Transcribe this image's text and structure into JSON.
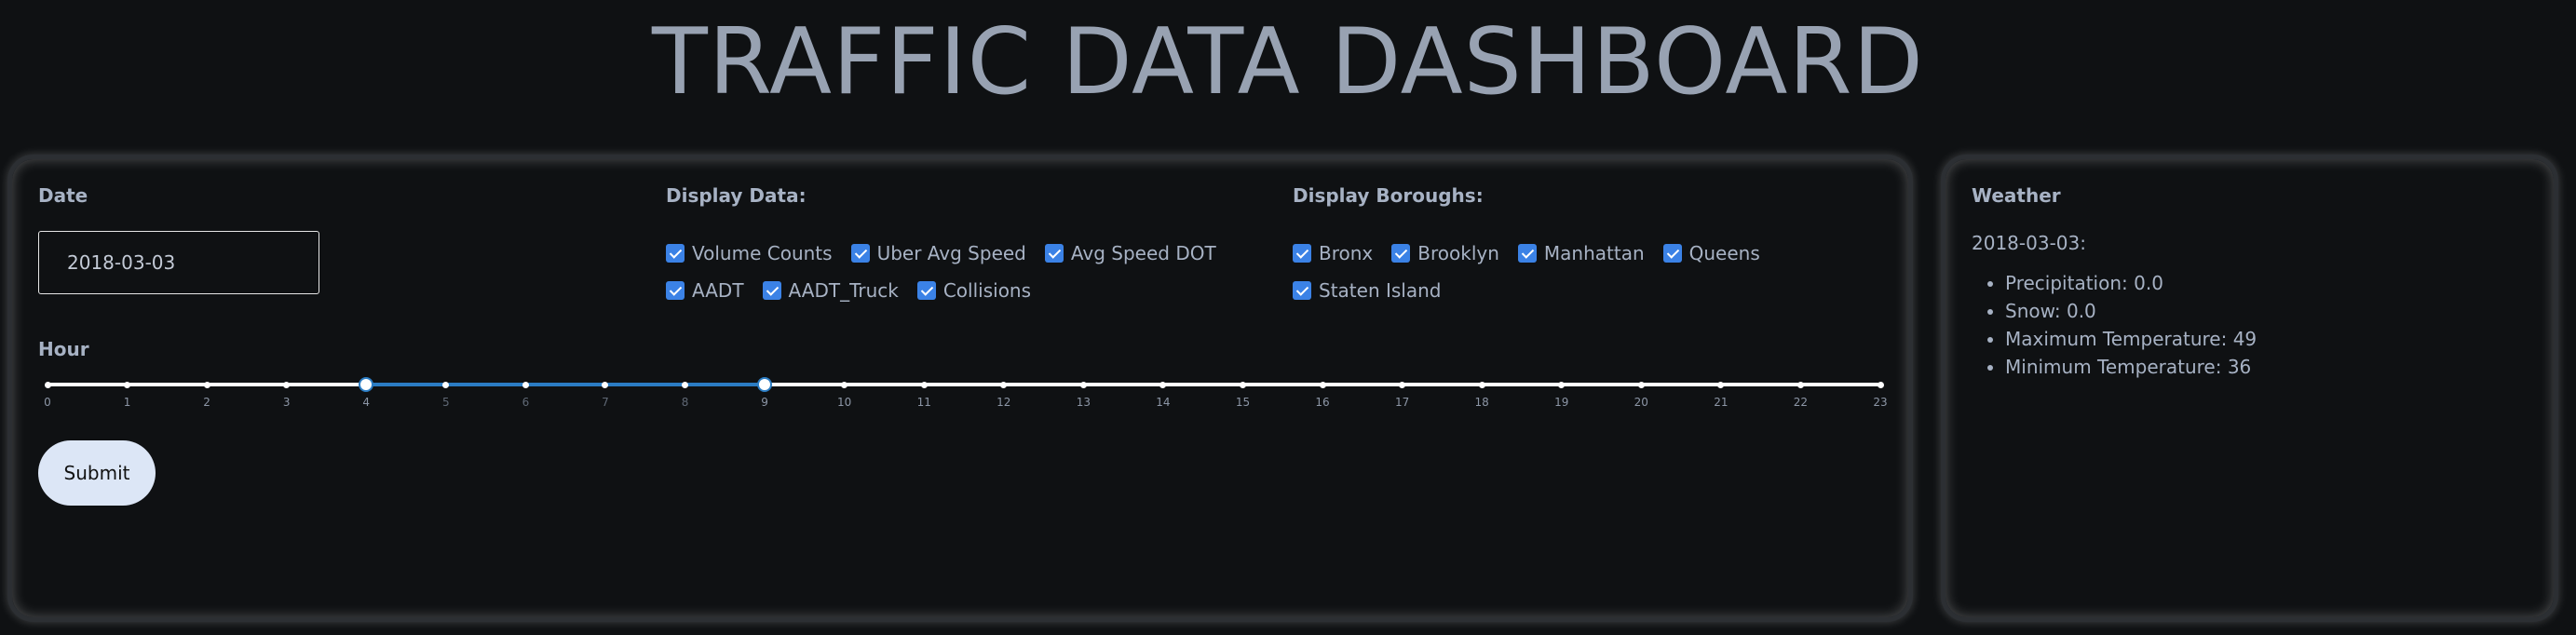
{
  "title": "TRAFFIC DATA DASHBOARD",
  "date": {
    "label": "Date",
    "value": "2018-03-03"
  },
  "display_data": {
    "label": "Display Data:",
    "options": [
      {
        "label": "Volume Counts",
        "checked": true
      },
      {
        "label": "Uber Avg Speed",
        "checked": true
      },
      {
        "label": "Avg Speed DOT",
        "checked": true
      },
      {
        "label": "AADT",
        "checked": true
      },
      {
        "label": "AADT_Truck",
        "checked": true
      },
      {
        "label": "Collisions",
        "checked": true
      }
    ]
  },
  "display_boroughs": {
    "label": "Display Boroughs:",
    "options": [
      {
        "label": "Bronx",
        "checked": true
      },
      {
        "label": "Brooklyn",
        "checked": true
      },
      {
        "label": "Manhattan",
        "checked": true
      },
      {
        "label": "Queens",
        "checked": true
      },
      {
        "label": "Staten Island",
        "checked": true
      }
    ]
  },
  "hour": {
    "label": "Hour",
    "min": 0,
    "max": 23,
    "range": [
      4,
      9
    ],
    "ticks": [
      "0",
      "1",
      "2",
      "3",
      "4",
      "5",
      "6",
      "7",
      "8",
      "9",
      "10",
      "11",
      "12",
      "13",
      "14",
      "15",
      "16",
      "17",
      "18",
      "19",
      "20",
      "21",
      "22",
      "23"
    ]
  },
  "submit_label": "Submit",
  "weather": {
    "label": "Weather",
    "date": "2018-03-03:",
    "items": [
      "Precipitation: 0.0",
      "Snow: 0.0",
      "Maximum Temperature: 49",
      "Minimum Temperature: 36"
    ]
  },
  "colors": {
    "accent": "#3b82e6",
    "range": "#2b7cc3",
    "background": "#0f1113"
  }
}
